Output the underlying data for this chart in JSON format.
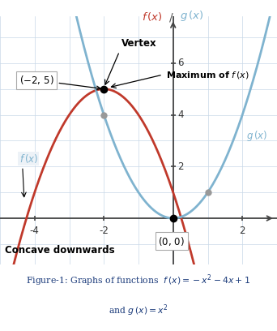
{
  "xlim": [
    -5.0,
    3.0
  ],
  "ylim": [
    -1.8,
    7.8
  ],
  "xticks": [
    -4,
    -2,
    2
  ],
  "yticks": [
    2,
    4,
    6
  ],
  "f_color": "#c0392b",
  "g_color": "#7fb3cf",
  "bg_color": "#edf2f7",
  "grid_color": "#c8d8e8",
  "axis_color": "#444444",
  "concave_text": "Concave downwards"
}
